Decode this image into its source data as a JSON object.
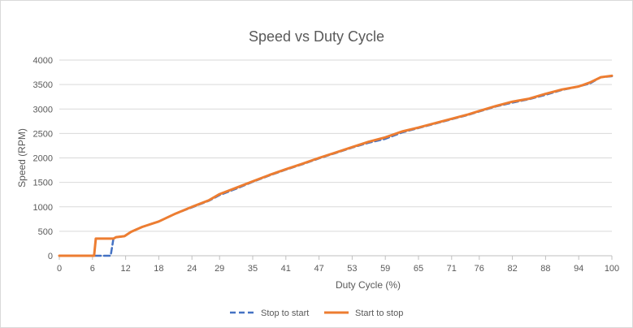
{
  "chart_data": {
    "type": "line",
    "title": "Speed vs Duty Cycle",
    "xlabel": "Duty Cycle (%)",
    "ylabel": "Speed (RPM)",
    "xlim": [
      0,
      100
    ],
    "ylim": [
      0,
      4000
    ],
    "x_ticks": [
      "0",
      "6",
      "12",
      "18",
      "24",
      "29",
      "35",
      "41",
      "47",
      "53",
      "59",
      "65",
      "71",
      "76",
      "82",
      "88",
      "94",
      "100"
    ],
    "x_tick_values": [
      0,
      6,
      12,
      18,
      24,
      29,
      35,
      41,
      47,
      53,
      59,
      65,
      71,
      76,
      82,
      88,
      94,
      100
    ],
    "y_ticks": [
      0,
      500,
      1000,
      1500,
      2000,
      2500,
      3000,
      3500,
      4000
    ],
    "grid": "horizontal",
    "legend_position": "bottom",
    "series": [
      {
        "name": "Stop to start",
        "color": "#4472C4",
        "style": "dashed",
        "x": [
          0,
          6,
          9.3,
          9.8,
          10.3,
          11.8,
          13,
          15,
          18,
          21,
          24,
          27,
          29,
          32,
          35,
          38,
          41,
          44,
          47,
          50,
          53,
          56,
          59,
          62,
          65,
          68,
          71,
          74,
          76,
          79,
          82,
          85,
          88,
          91,
          94,
          96,
          98,
          100
        ],
        "y": [
          0,
          0,
          0,
          350,
          380,
          400,
          490,
          590,
          700,
          860,
          990,
          1120,
          1240,
          1370,
          1510,
          1640,
          1760,
          1870,
          1990,
          2100,
          2210,
          2310,
          2390,
          2520,
          2610,
          2700,
          2790,
          2880,
          2950,
          3050,
          3130,
          3200,
          3290,
          3390,
          3460,
          3520,
          3650,
          3670
        ]
      },
      {
        "name": "Start to stop",
        "color": "#ED7D31",
        "style": "solid",
        "x": [
          0,
          6.3,
          6.6,
          9.8,
          10.3,
          11.8,
          13,
          15,
          18,
          21,
          24,
          27,
          29,
          32,
          35,
          38,
          41,
          44,
          47,
          50,
          53,
          56,
          59,
          62,
          65,
          68,
          71,
          74,
          76,
          79,
          82,
          85,
          88,
          91,
          94,
          96,
          98,
          100
        ],
        "y": [
          0,
          0,
          350,
          350,
          380,
          400,
          490,
          590,
          700,
          860,
          1000,
          1130,
          1260,
          1390,
          1520,
          1650,
          1770,
          1880,
          2000,
          2110,
          2220,
          2330,
          2420,
          2540,
          2620,
          2710,
          2800,
          2890,
          2960,
          3060,
          3150,
          3210,
          3310,
          3400,
          3460,
          3540,
          3650,
          3680
        ]
      }
    ]
  }
}
